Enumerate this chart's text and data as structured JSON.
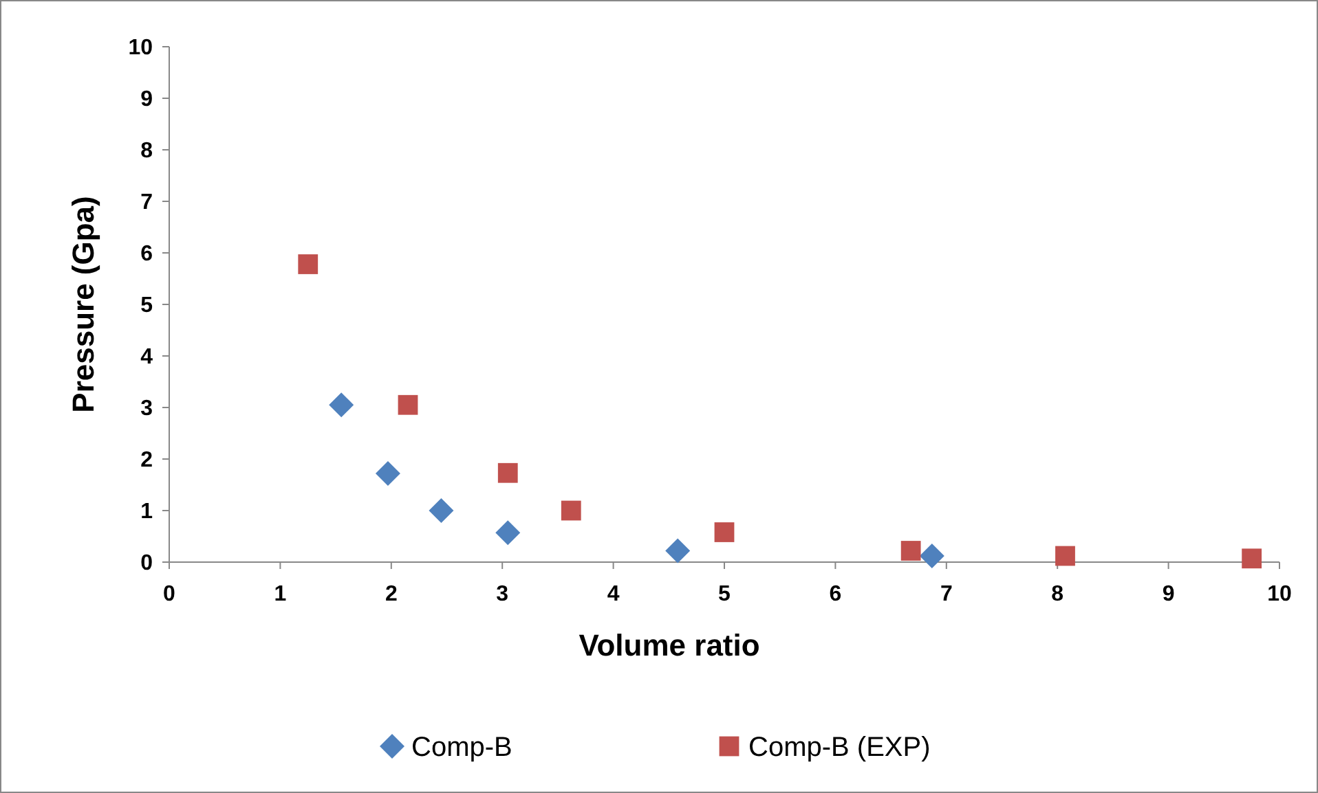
{
  "chart_data": {
    "type": "scatter",
    "xlabel": "Volume ratio",
    "ylabel": "Pressure (Gpa)",
    "xlim": [
      0,
      10
    ],
    "xticks": [
      0,
      1,
      2,
      3,
      4,
      5,
      6,
      7,
      8,
      9,
      10
    ],
    "ylim": [
      0,
      10
    ],
    "yticks": [
      0,
      1,
      2,
      3,
      4,
      5,
      6,
      7,
      8,
      9,
      10
    ],
    "grid": false,
    "legend": "bottom",
    "series": [
      {
        "name": "Comp-B",
        "color": "#4f81bd",
        "marker": "diamond",
        "x": [
          1.55,
          1.97,
          2.45,
          3.05,
          4.58,
          6.87
        ],
        "values": [
          3.05,
          1.72,
          1.0,
          0.57,
          0.22,
          0.12
        ]
      },
      {
        "name": "Comp-B (EXP)",
        "color": "#c0504d",
        "marker": "square",
        "x": [
          1.25,
          2.15,
          3.05,
          3.62,
          5.0,
          6.68,
          8.07,
          9.75
        ],
        "values": [
          5.78,
          3.05,
          1.73,
          1.0,
          0.58,
          0.22,
          0.12,
          0.07
        ]
      }
    ]
  }
}
